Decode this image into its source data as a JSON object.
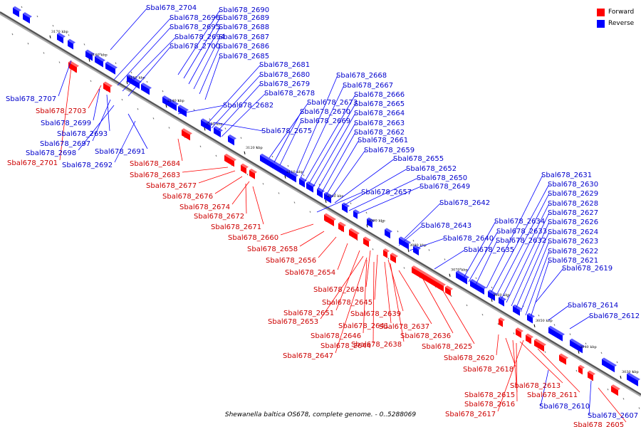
{
  "caption": "Shewanella baltica OS678, complete genome. - 0..5288069",
  "legend": {
    "forward": {
      "label": "Forward",
      "color": "#ff0000"
    },
    "reverse": {
      "label": "Reverse",
      "color": "#0000ff"
    }
  },
  "colors": {
    "forward_label": "#cc0000",
    "reverse_label": "#0000cc",
    "backbone": "#888888",
    "background": "#ffffff"
  },
  "ticks": [
    "3170 kbp",
    "3160 kbp",
    "3150 kbp",
    "3140 kbp",
    "3130 kbp",
    "3120 kbp",
    "3110 kbp",
    "3100 kbp",
    "3090 kbp",
    "3080 kbp",
    "3070 kbp",
    "3060 kbp",
    "3050 kbp",
    "3040 kbp",
    "3030 kbp"
  ],
  "reverse_labels": [
    "Sbal678_2704",
    "Sbal678_2690",
    "Sbal678_2696",
    "Sbal678_2689",
    "Sbal678_2695",
    "Sbal678_2688",
    "Sbal678_2694",
    "Sbal678_2687",
    "Sbal678_2700",
    "Sbal678_2686",
    "Sbal678_2685",
    "Sbal678_2681",
    "Sbal678_2680",
    "Sbal678_2679",
    "Sbal678_2678",
    "Sbal678_2673",
    "Sbal678_2682",
    "Sbal678_2670",
    "Sbal678_2669",
    "Sbal678_2675",
    "Sbal678_2668",
    "Sbal678_2667",
    "Sbal678_2666",
    "Sbal678_2665",
    "Sbal678_2664",
    "Sbal678_2663",
    "Sbal678_2662",
    "Sbal678_2661",
    "Sbal678_2659",
    "Sbal678_2655",
    "Sbal678_2652",
    "Sbal678_2650",
    "Sbal678_2657",
    "Sbal678_2649",
    "Sbal678_2642",
    "Sbal678_2643",
    "Sbal678_2640",
    "Sbal678_2635",
    "Sbal678_2634",
    "Sbal678_2633",
    "Sbal678_2632",
    "Sbal678_2631",
    "Sbal678_2630",
    "Sbal678_2629",
    "Sbal678_2628",
    "Sbal678_2627",
    "Sbal678_2626",
    "Sbal678_2624",
    "Sbal678_2623",
    "Sbal678_2622",
    "Sbal678_2621",
    "Sbal678_2619",
    "Sbal678_2614",
    "Sbal678_2612",
    "Sbal678_2610",
    "Sbal678_2607",
    "Sbal678_2707",
    "Sbal678_2699",
    "Sbal678_2693",
    "Sbal678_2697",
    "Sbal678_2698",
    "Sbal678_2691",
    "Sbal678_2692"
  ],
  "forward_labels": [
    "Sbal678_2703",
    "Sbal678_2701",
    "Sbal678_2684",
    "Sbal678_2683",
    "Sbal678_2677",
    "Sbal678_2676",
    "Sbal678_2674",
    "Sbal678_2672",
    "Sbal678_2671",
    "Sbal678_2660",
    "Sbal678_2658",
    "Sbal678_2656",
    "Sbal678_2654",
    "Sbal678_2648",
    "Sbal678_2645",
    "Sbal678_2651",
    "Sbal678_2639",
    "Sbal678_2653",
    "Sbal678_2641",
    "Sbal678_2637",
    "Sbal678_2646",
    "Sbal678_2636",
    "Sbal678_2644",
    "Sbal678_2638",
    "Sbal678_2625",
    "Sbal678_2647",
    "Sbal678_2620",
    "Sbal678_2618",
    "Sbal678_2613",
    "Sbal678_2615",
    "Sbal678_2611",
    "Sbal678_2616",
    "Sbal678_2617",
    "Sbal678_2605"
  ]
}
